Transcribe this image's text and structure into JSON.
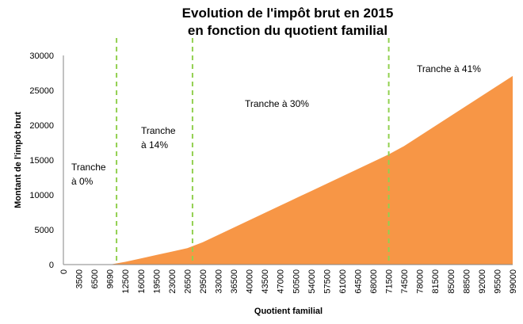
{
  "chart_data": {
    "type": "area",
    "title": [
      "Evolution de l'impôt brut en 2015",
      "en fonction du quotient familial"
    ],
    "xlabel": "Quotient familial",
    "ylabel": "Montant de l'impôt brut",
    "ylim": [
      0,
      30000
    ],
    "yticks": [
      0,
      5000,
      10000,
      15000,
      20000,
      25000,
      30000
    ],
    "grid": false,
    "legend": "none",
    "categories": [
      "0",
      "3500",
      "6500",
      "9690",
      "12500",
      "16000",
      "19500",
      "23000",
      "26500",
      "29500",
      "33000",
      "36500",
      "40000",
      "43500",
      "47000",
      "50500",
      "54000",
      "57500",
      "61000",
      "64500",
      "68000",
      "71500",
      "74500",
      "78000",
      "81500",
      "85000",
      "88500",
      "92000",
      "95500",
      "99000"
    ],
    "values": [
      0,
      0,
      0,
      0,
      393,
      883,
      1373,
      1863,
      2353,
      3211,
      4261,
      5311,
      6361,
      7411,
      8461,
      9511,
      10561,
      11611,
      12661,
      13711,
      14761,
      15811,
      17013,
      18448,
      19883,
      21318,
      22753,
      24188,
      25623,
      27058
    ],
    "area_color": "#F79646",
    "thresholds": [
      10900,
      27500,
      71500
    ],
    "threshold_color": "#92D050",
    "annotations": [
      {
        "lines": [
          "Tranche",
          "à 0%"
        ]
      },
      {
        "lines": [
          "Tranche",
          "à 14%"
        ]
      },
      {
        "lines": [
          "Tranche à 30%"
        ]
      },
      {
        "lines": [
          "Tranche à 41%"
        ]
      }
    ]
  }
}
